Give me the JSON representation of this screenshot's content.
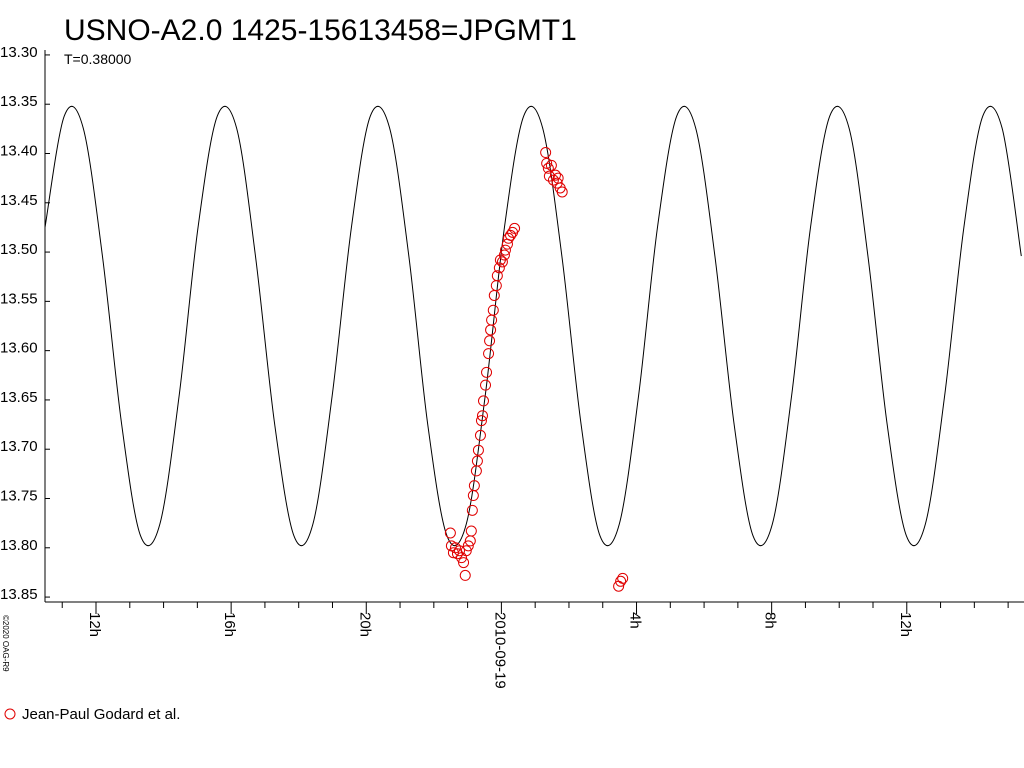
{
  "chart_data": {
    "type": "scatter",
    "title": "USNO-A2.0 1425-15613458=JPGMT1",
    "subtitle": "T=0.38000",
    "credit": "©2020 OAG-R9",
    "invert_y": true,
    "xlim": [
      10.49,
      39.47
    ],
    "ylim": [
      13.295,
      13.855
    ],
    "yticks": [
      {
        "value": 13.3,
        "label": "13.30"
      },
      13.35,
      {
        "value": 13.4,
        "label": "13.40"
      },
      13.45,
      {
        "value": 13.5,
        "label": "13.50"
      },
      13.55,
      {
        "value": 13.6,
        "label": "13.60"
      },
      13.65,
      {
        "value": 13.7,
        "label": "13.70"
      },
      13.75,
      {
        "value": 13.8,
        "label": "13.80"
      },
      13.85
    ],
    "xticks": [
      {
        "value": 12,
        "label": "12h"
      },
      {
        "value": 16,
        "label": "16h"
      },
      {
        "value": 20,
        "label": "20h"
      },
      {
        "value": 24,
        "label": "2010-09-19"
      },
      {
        "value": 28,
        "label": "4h"
      },
      {
        "value": 32,
        "label": "8h"
      },
      {
        "value": 36,
        "label": "12h"
      }
    ],
    "xminorticks": [
      11,
      13,
      14,
      15,
      17,
      18,
      19,
      21,
      22,
      23,
      25,
      26,
      27,
      29,
      30,
      31,
      33,
      34,
      35,
      37,
      38,
      39
    ],
    "model": {
      "color": "#000000",
      "x": [
        10.49,
        11.06,
        11.62,
        12.19,
        12.76,
        13.32,
        13.89,
        14.46,
        15.02,
        15.59,
        16.16,
        16.72,
        17.29,
        17.86,
        18.42,
        18.99,
        19.56,
        20.12,
        20.69,
        21.26,
        21.82,
        22.39,
        22.96,
        23.52,
        24.09,
        24.66,
        25.22,
        25.79,
        26.36,
        26.92,
        27.49,
        28.06,
        28.62,
        29.19,
        29.75,
        30.32,
        30.89,
        31.45,
        32.02,
        32.59,
        33.15,
        33.72,
        34.29,
        34.85,
        35.42,
        35.99,
        36.55,
        37.12,
        37.69,
        38.25,
        38.82,
        39.39
      ],
      "values": [
        13.475,
        13.362,
        13.374,
        13.504,
        13.675,
        13.788,
        13.776,
        13.646,
        13.475,
        13.362,
        13.374,
        13.504,
        13.675,
        13.788,
        13.776,
        13.646,
        13.475,
        13.362,
        13.374,
        13.504,
        13.675,
        13.788,
        13.776,
        13.646,
        13.475,
        13.362,
        13.374,
        13.504,
        13.675,
        13.788,
        13.776,
        13.646,
        13.475,
        13.362,
        13.374,
        13.504,
        13.675,
        13.788,
        13.776,
        13.646,
        13.475,
        13.362,
        13.374,
        13.504,
        13.675,
        13.788,
        13.776,
        13.646,
        13.475,
        13.362,
        13.374,
        13.504
      ]
    },
    "series": [
      {
        "name": "Jean-Paul Godard et al.",
        "color": "#e00000",
        "x": [
          22.49,
          22.52,
          22.58,
          22.64,
          22.7,
          22.76,
          22.82,
          22.88,
          22.93,
          22.96,
          23.02,
          23.08,
          23.11,
          23.14,
          23.17,
          23.2,
          23.26,
          23.29,
          23.32,
          23.38,
          23.41,
          23.44,
          23.47,
          23.53,
          23.56,
          23.62,
          23.65,
          23.68,
          23.71,
          23.76,
          23.79,
          23.85,
          23.88,
          23.94,
          23.97,
          24.03,
          24.09,
          24.12,
          24.18,
          24.21,
          24.27,
          24.33,
          24.39,
          25.31,
          25.34,
          25.39,
          25.42,
          25.48,
          25.54,
          25.6,
          25.65,
          25.68,
          25.74,
          25.8,
          27.47,
          27.53,
          27.59
        ],
        "values": [
          13.785,
          13.798,
          13.805,
          13.8,
          13.806,
          13.803,
          13.81,
          13.815,
          13.828,
          13.803,
          13.798,
          13.793,
          13.783,
          13.762,
          13.747,
          13.737,
          13.722,
          13.712,
          13.701,
          13.686,
          13.671,
          13.666,
          13.651,
          13.635,
          13.622,
          13.603,
          13.59,
          13.579,
          13.569,
          13.559,
          13.544,
          13.534,
          13.524,
          13.516,
          13.508,
          13.51,
          13.503,
          13.498,
          13.492,
          13.486,
          13.483,
          13.48,
          13.476,
          13.399,
          13.41,
          13.415,
          13.423,
          13.412,
          13.427,
          13.422,
          13.43,
          13.425,
          13.435,
          13.439,
          13.839,
          13.834,
          13.831
        ]
      }
    ]
  }
}
